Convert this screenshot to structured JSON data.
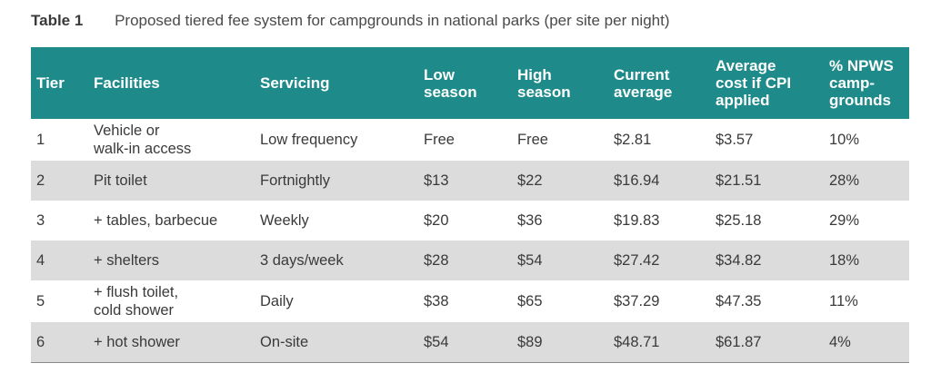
{
  "caption": {
    "label": "Table 1",
    "text": "Proposed tiered fee system for campgrounds in national parks (per site per night)"
  },
  "header": {
    "tier": "Tier",
    "facilities": "Facilities",
    "servicing": "Servicing",
    "low": [
      "Low",
      "season"
    ],
    "high": [
      "High",
      "season"
    ],
    "current": [
      "Current",
      "average"
    ],
    "avg_cpi": [
      "Average",
      "cost if CPI",
      "applied"
    ],
    "npws": [
      "% NPWS",
      "camp-",
      "grounds"
    ]
  },
  "rows": [
    {
      "tier": "1",
      "facilities": [
        "Vehicle or",
        "walk-in access"
      ],
      "servicing": "Low frequency",
      "low": "Free",
      "high": "Free",
      "current": "$2.81",
      "avg_cpi": "$3.57",
      "npws": "10%"
    },
    {
      "tier": "2",
      "facilities": [
        "Pit toilet"
      ],
      "servicing": "Fortnightly",
      "low": "$13",
      "high": "$22",
      "current": "$16.94",
      "avg_cpi": "$21.51",
      "npws": "28%"
    },
    {
      "tier": "3",
      "facilities": [
        "+ tables, barbecue"
      ],
      "servicing": "Weekly",
      "low": "$20",
      "high": "$36",
      "current": "$19.83",
      "avg_cpi": "$25.18",
      "npws": "29%"
    },
    {
      "tier": "4",
      "facilities": [
        "+ shelters"
      ],
      "servicing": "3 days/week",
      "low": "$28",
      "high": "$54",
      "current": "$27.42",
      "avg_cpi": "$34.82",
      "npws": "18%"
    },
    {
      "tier": "5",
      "facilities": [
        "+ flush toilet,",
        "cold shower"
      ],
      "servicing": "Daily",
      "low": "$38",
      "high": "$65",
      "current": "$37.29",
      "avg_cpi": "$47.35",
      "npws": "11%"
    },
    {
      "tier": "6",
      "facilities": [
        "+ hot shower"
      ],
      "servicing": "On-site",
      "low": "$54",
      "high": "$89",
      "current": "$48.71",
      "avg_cpi": "$61.87",
      "npws": "4%"
    }
  ]
}
